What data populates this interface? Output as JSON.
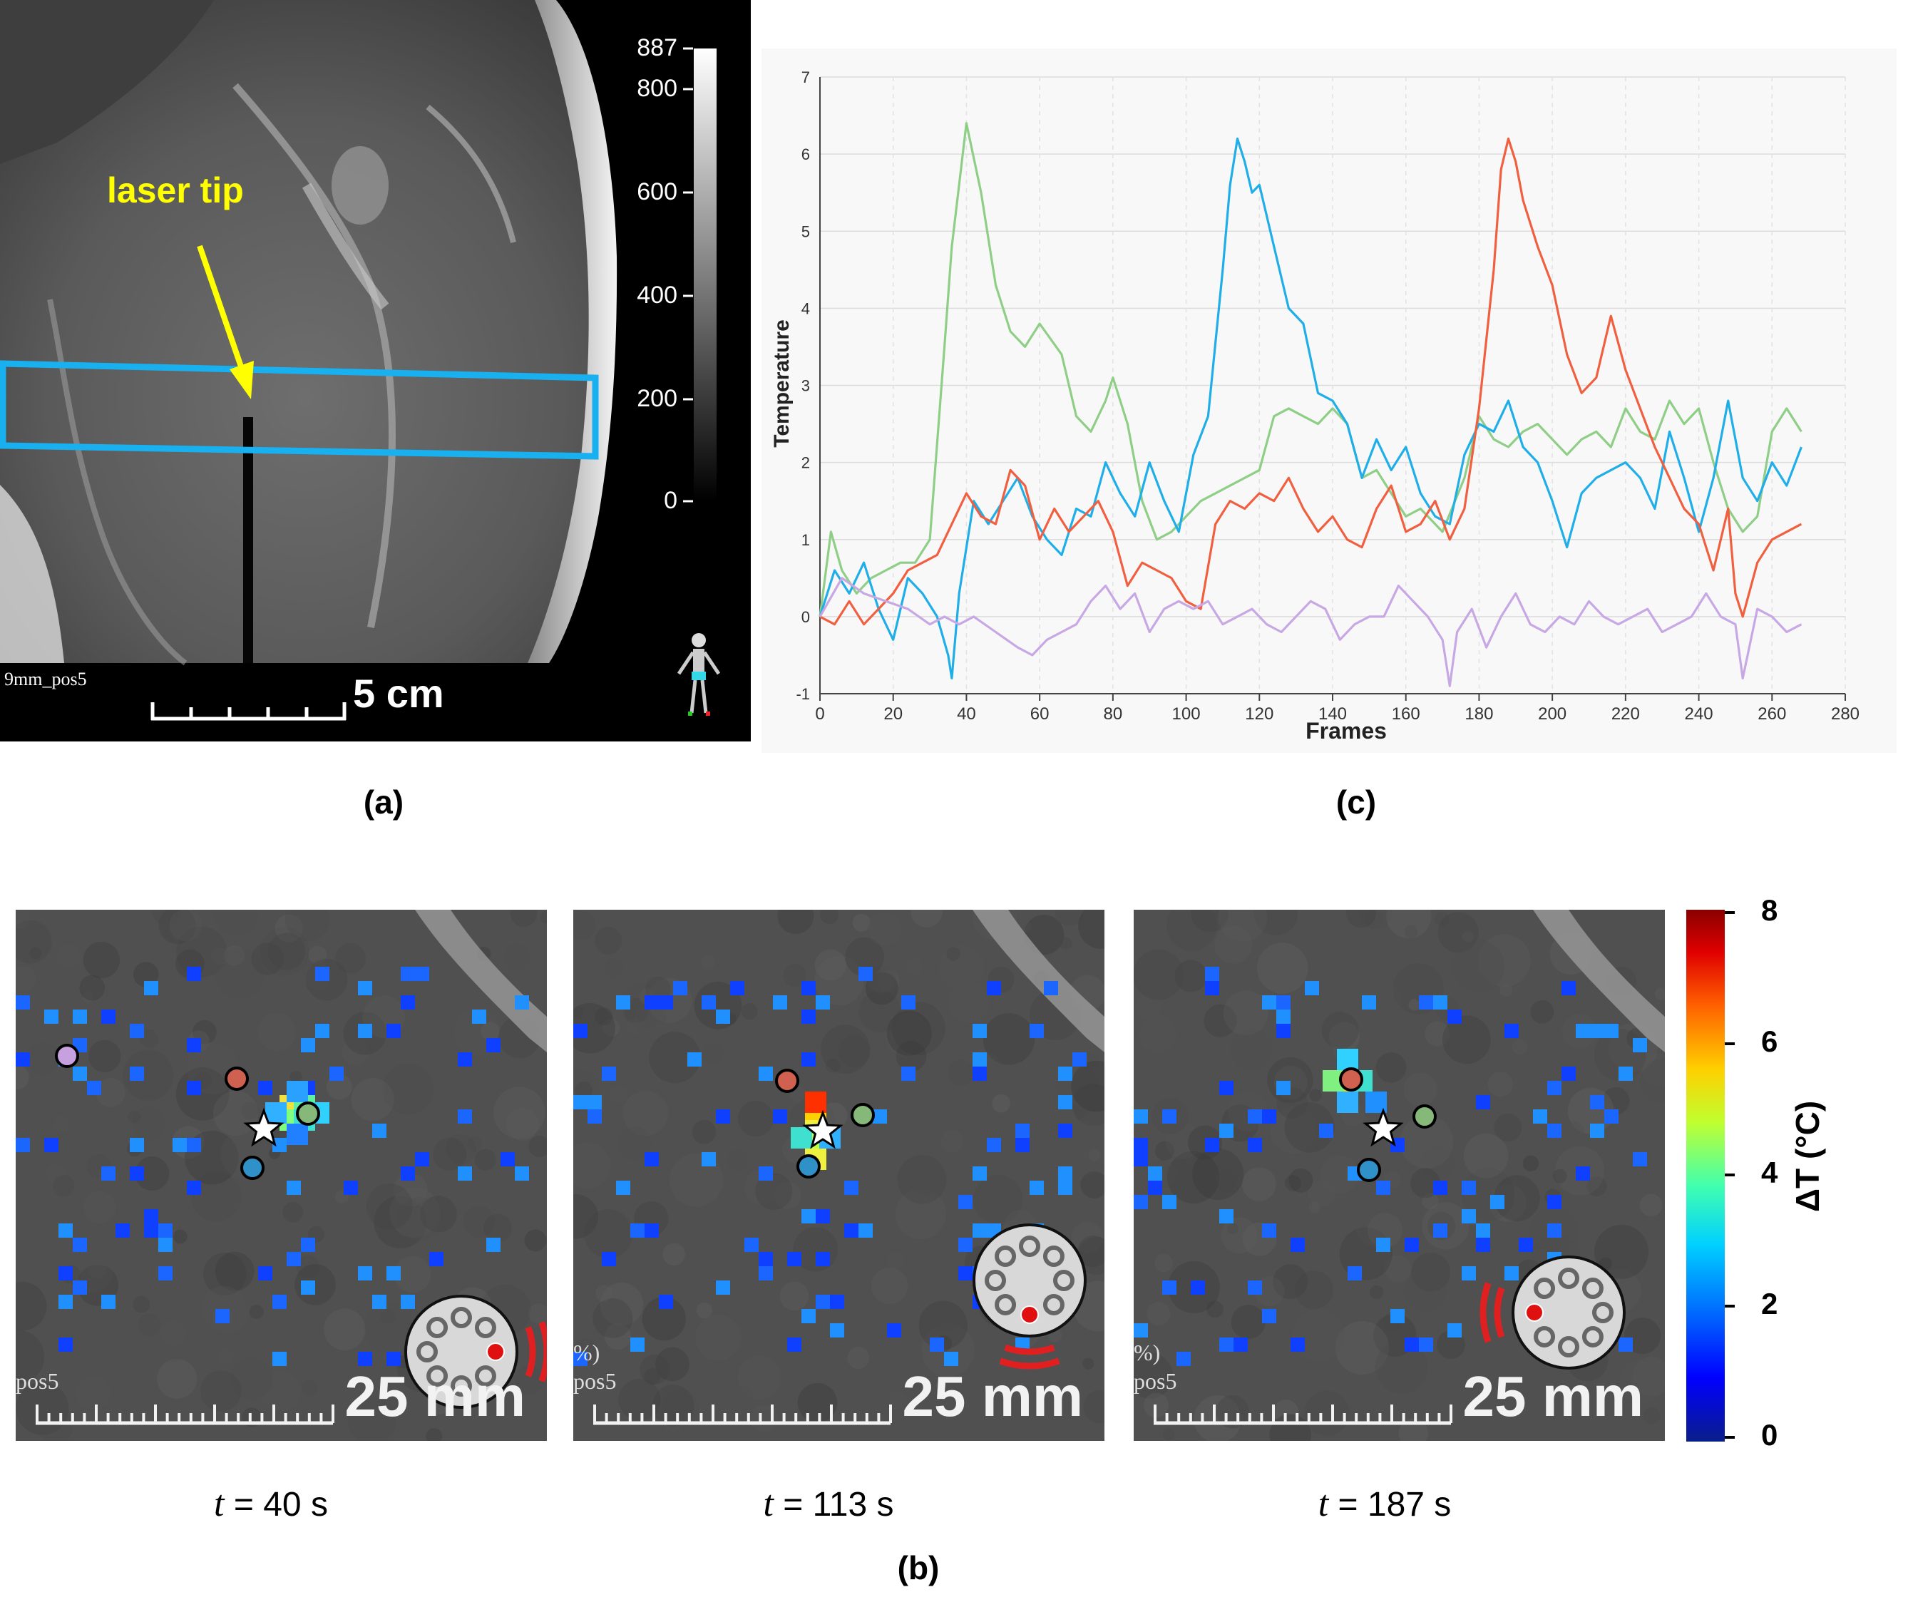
{
  "panel_a": {
    "letter": "(a)",
    "annotation": "laser tip",
    "series_label": "9mm_pos5",
    "scale_bar": "5 cm",
    "colorbar_ticks": [
      "887",
      "800",
      "600",
      "400",
      "200",
      "0"
    ],
    "colors": {
      "annotation": "#ffff00",
      "roi_box": "#19b0f0"
    }
  },
  "panel_b": {
    "letter": "(b)",
    "panels": [
      {
        "time_value": "= 40 s",
        "series_label": "pos5",
        "pct_label": "",
        "scale_bar": "25 mm"
      },
      {
        "time_value": "= 113 s",
        "series_label": "pos5",
        "pct_label": "%)",
        "scale_bar": "25 mm"
      },
      {
        "time_value": "= 187 s",
        "series_label": "pos5",
        "pct_label": "%)",
        "scale_bar": "25 mm"
      }
    ],
    "time_symbol": "t",
    "colorbar": {
      "title": "ΔT (°C)",
      "ticks": [
        "8",
        "6",
        "4",
        "2",
        "0"
      ]
    }
  },
  "panel_c": {
    "letter": "(c)"
  },
  "chart_data": {
    "type": "line",
    "title": "",
    "xlabel": "Frames",
    "ylabel": "Temperature",
    "xlim": [
      0,
      280
    ],
    "ylim": [
      -1,
      7
    ],
    "xticks": [
      0,
      20,
      40,
      60,
      80,
      100,
      120,
      140,
      160,
      180,
      200,
      220,
      240,
      260,
      280
    ],
    "yticks": [
      -1,
      0,
      1,
      2,
      3,
      4,
      5,
      6,
      7
    ],
    "grid": true,
    "series": [
      {
        "color": "#8fce86",
        "x": [
          0,
          3,
          6,
          10,
          14,
          18,
          22,
          26,
          30,
          34,
          36,
          40,
          44,
          48,
          52,
          56,
          60,
          66,
          70,
          74,
          78,
          80,
          84,
          88,
          92,
          96,
          100,
          104,
          108,
          112,
          116,
          120,
          124,
          128,
          132,
          136,
          140,
          144,
          148,
          152,
          156,
          160,
          164,
          170,
          176,
          180,
          184,
          188,
          192,
          196,
          200,
          204,
          208,
          212,
          216,
          220,
          224,
          228,
          232,
          236,
          240,
          244,
          248,
          252,
          256,
          260,
          264,
          268
        ],
        "y": [
          0,
          1.1,
          0.6,
          0.3,
          0.5,
          0.6,
          0.7,
          0.7,
          1.0,
          3.5,
          4.8,
          6.4,
          5.5,
          4.3,
          3.7,
          3.5,
          3.8,
          3.4,
          2.6,
          2.4,
          2.8,
          3.1,
          2.5,
          1.5,
          1.0,
          1.1,
          1.3,
          1.5,
          1.6,
          1.7,
          1.8,
          1.9,
          2.6,
          2.7,
          2.6,
          2.5,
          2.7,
          2.5,
          1.8,
          1.9,
          1.6,
          1.3,
          1.4,
          1.1,
          1.8,
          2.6,
          2.3,
          2.2,
          2.4,
          2.5,
          2.3,
          2.1,
          2.3,
          2.4,
          2.2,
          2.7,
          2.4,
          2.3,
          2.8,
          2.5,
          2.7,
          2.0,
          1.4,
          1.1,
          1.3,
          2.4,
          2.7,
          2.4
        ]
      },
      {
        "color": "#20aee8",
        "x": [
          0,
          4,
          8,
          12,
          16,
          20,
          24,
          28,
          32,
          35,
          36,
          38,
          42,
          46,
          50,
          54,
          58,
          62,
          66,
          70,
          74,
          78,
          82,
          86,
          90,
          94,
          98,
          102,
          106,
          110,
          112,
          114,
          116,
          118,
          120,
          124,
          128,
          132,
          136,
          140,
          144,
          148,
          152,
          156,
          160,
          164,
          168,
          172,
          176,
          180,
          184,
          188,
          192,
          196,
          200,
          204,
          208,
          212,
          216,
          220,
          224,
          228,
          232,
          236,
          240,
          244,
          248,
          252,
          256,
          260,
          264,
          268
        ],
        "y": [
          0,
          0.6,
          0.3,
          0.7,
          0.1,
          -0.3,
          0.5,
          0.3,
          0.0,
          -0.5,
          -0.8,
          0.3,
          1.5,
          1.2,
          1.5,
          1.8,
          1.3,
          1.0,
          0.8,
          1.4,
          1.3,
          2.0,
          1.6,
          1.3,
          2.0,
          1.5,
          1.1,
          2.1,
          2.6,
          4.5,
          5.6,
          6.2,
          5.9,
          5.5,
          5.6,
          4.8,
          4.0,
          3.8,
          2.9,
          2.8,
          2.5,
          1.8,
          2.3,
          1.9,
          2.2,
          1.6,
          1.3,
          1.2,
          2.1,
          2.5,
          2.4,
          2.8,
          2.2,
          2.0,
          1.5,
          0.9,
          1.6,
          1.8,
          1.9,
          2.0,
          1.8,
          1.4,
          2.4,
          1.8,
          1.1,
          1.8,
          2.8,
          1.8,
          1.5,
          2.0,
          1.7,
          2.2
        ]
      },
      {
        "color": "#f06040",
        "x": [
          0,
          4,
          8,
          12,
          16,
          20,
          24,
          28,
          32,
          36,
          40,
          44,
          48,
          52,
          56,
          60,
          64,
          68,
          72,
          76,
          80,
          84,
          88,
          92,
          96,
          100,
          104,
          108,
          112,
          116,
          120,
          124,
          128,
          132,
          136,
          140,
          144,
          148,
          152,
          156,
          160,
          164,
          168,
          172,
          176,
          180,
          184,
          186,
          188,
          190,
          192,
          196,
          200,
          204,
          208,
          212,
          216,
          220,
          224,
          228,
          232,
          236,
          240,
          244,
          248,
          250,
          252,
          256,
          260,
          264,
          268
        ],
        "y": [
          0,
          -0.1,
          0.2,
          -0.1,
          0.1,
          0.3,
          0.6,
          0.7,
          0.8,
          1.2,
          1.6,
          1.3,
          1.2,
          1.9,
          1.7,
          1.0,
          1.4,
          1.1,
          1.3,
          1.5,
          1.1,
          0.4,
          0.7,
          0.6,
          0.5,
          0.2,
          0.1,
          1.2,
          1.5,
          1.4,
          1.6,
          1.5,
          1.8,
          1.4,
          1.1,
          1.3,
          1.0,
          0.9,
          1.4,
          1.7,
          1.1,
          1.2,
          1.5,
          1.0,
          1.4,
          2.7,
          4.5,
          5.8,
          6.2,
          5.9,
          5.4,
          4.8,
          4.3,
          3.4,
          2.9,
          3.1,
          3.9,
          3.2,
          2.7,
          2.2,
          1.8,
          1.4,
          1.2,
          0.6,
          1.4,
          0.3,
          0.0,
          0.7,
          1.0,
          1.1,
          1.2
        ]
      },
      {
        "color": "#c8a8e4",
        "x": [
          0,
          6,
          12,
          18,
          24,
          30,
          34,
          38,
          42,
          48,
          54,
          58,
          62,
          66,
          70,
          74,
          78,
          82,
          86,
          90,
          94,
          98,
          102,
          106,
          110,
          114,
          118,
          122,
          126,
          130,
          134,
          138,
          142,
          146,
          150,
          154,
          158,
          162,
          166,
          170,
          172,
          174,
          178,
          182,
          186,
          190,
          194,
          198,
          202,
          206,
          210,
          214,
          218,
          222,
          226,
          230,
          234,
          238,
          242,
          246,
          250,
          252,
          256,
          260,
          264,
          268
        ],
        "y": [
          0,
          0.5,
          0.3,
          0.2,
          0.1,
          -0.1,
          0.0,
          -0.1,
          0.0,
          -0.2,
          -0.4,
          -0.5,
          -0.3,
          -0.2,
          -0.1,
          0.2,
          0.4,
          0.1,
          0.3,
          -0.2,
          0.1,
          0.2,
          0.1,
          0.2,
          -0.1,
          0.0,
          0.1,
          -0.1,
          -0.2,
          0.0,
          0.2,
          0.1,
          -0.3,
          -0.1,
          0.0,
          0.0,
          0.4,
          0.2,
          0.0,
          -0.3,
          -0.9,
          -0.2,
          0.1,
          -0.4,
          0.0,
          0.3,
          -0.1,
          -0.2,
          0.0,
          -0.1,
          0.2,
          0.0,
          -0.1,
          0.0,
          0.1,
          -0.2,
          -0.1,
          0.0,
          0.3,
          0.0,
          -0.1,
          -0.8,
          0.1,
          0.0,
          -0.2,
          -0.1
        ]
      }
    ]
  }
}
